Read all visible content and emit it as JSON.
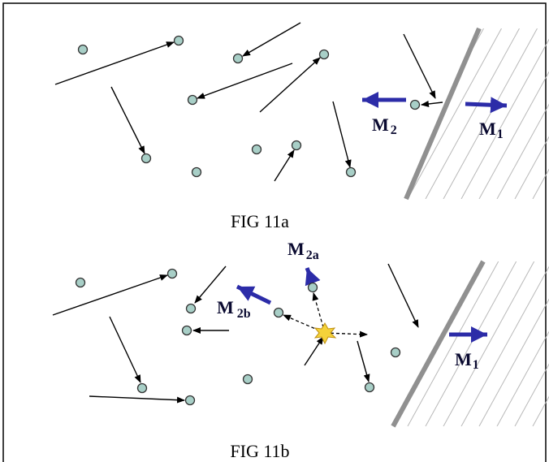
{
  "figures": [
    {
      "caption": "FIG 11a",
      "labels": [
        {
          "main": "M",
          "sub": "2"
        },
        {
          "main": "M",
          "sub": "1"
        }
      ]
    },
    {
      "caption": "FIG 11b",
      "labels": [
        {
          "main": "M",
          "sub": "2a"
        },
        {
          "main": "M",
          "sub": "2b"
        },
        {
          "main": "M",
          "sub": "1"
        }
      ]
    }
  ]
}
